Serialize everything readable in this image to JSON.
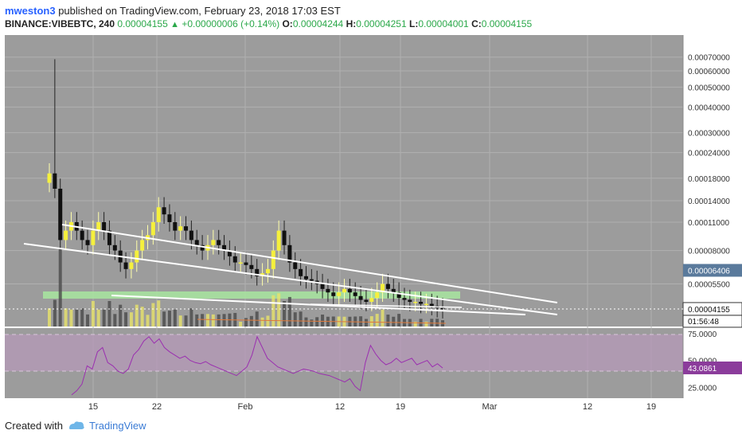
{
  "header": {
    "user": "mweston3",
    "published": "published on TradingView.com, February 23, 2018 17:03 EST",
    "symbol": "BINANCE:VIBEBTC, 240",
    "last": "0.00004155",
    "arrow": "▲",
    "change": "+0.00000006 (+0.14%)",
    "o_label": "O:",
    "o_value": "0.00004244",
    "h_label": "H:",
    "h_value": "0.00004251",
    "l_label": "L:",
    "l_value": "0.00004001",
    "c_label": "C:",
    "c_value": "0.00004155"
  },
  "footer": {
    "created": "Created with",
    "brand": "TradingView"
  },
  "colors": {
    "background": "#9c9c9c",
    "axis_bg": "#ffffff",
    "bull": "#f5f03c",
    "bear": "#111111",
    "trendline": "#ffffff",
    "zone": "#a8e6a0",
    "rsi": "#9b2fb0",
    "rsi_band": "#b59ab8",
    "price_tag": "#5a7a9c",
    "rsi_tag": "#8b3c9b"
  },
  "chart_data": [
    {
      "type": "candlestick",
      "symbol": "BINANCE:VIBEBTC",
      "interval": "240",
      "y_scale": "log",
      "y_ticks": [
        "0.00070000",
        "0.00060000",
        "0.00050000",
        "0.00040000",
        "0.00030000",
        "0.00024000",
        "0.00018000",
        "0.00014000",
        "0.00011000",
        "0.00008000",
        "0.00005500"
      ],
      "y_tick_values": [
        0.0007,
        0.0006,
        0.0005,
        0.0004,
        0.0003,
        0.00024,
        0.00018,
        0.00014,
        0.00011,
        8e-05,
        5.5e-05
      ],
      "x_ticks": [
        "15",
        "22",
        "Feb",
        "12",
        "19",
        "Mar",
        "12",
        "19"
      ],
      "price_tags": [
        {
          "label": "0.00006406",
          "value": 6.406e-05,
          "style": "filled"
        },
        {
          "label": "0.00004155",
          "value": 4.155e-05,
          "style": "outline"
        }
      ],
      "countdown": "01:56:48",
      "ylim": [
        3.6e-05,
        0.00085
      ],
      "close_series": [
        0.00019,
        0.00016,
        9e-05,
        0.0001,
        0.00011,
        0.0001,
        9e-05,
        8.5e-05,
        0.0001,
        0.00011,
        0.0001,
        8.5e-05,
        8e-05,
        7e-05,
        6.5e-05,
        7e-05,
        8e-05,
        9e-05,
        9.5e-05,
        0.00011,
        0.00013,
        0.00012,
        0.00011,
        0.0001,
        0.000105,
        0.0001,
        9e-05,
        8.5e-05,
        8e-05,
        8.5e-05,
        9e-05,
        8.5e-05,
        8e-05,
        7.5e-05,
        7e-05,
        7e-05,
        6.8e-05,
        6.5e-05,
        6e-05,
        6.2e-05,
        6.5e-05,
        8e-05,
        0.0001,
        8.5e-05,
        7e-05,
        6.5e-05,
        6e-05,
        5.8e-05,
        5.7e-05,
        5.5e-05,
        5.2e-05,
        5e-05,
        4.8e-05,
        5e-05,
        5.2e-05,
        5e-05,
        4.8e-05,
        4.6e-05,
        4.5e-05,
        4.7e-05,
        5e-05,
        5.5e-05,
        5.2e-05,
        5e-05,
        4.7e-05,
        4.6e-05,
        4.5e-05,
        4.5e-05,
        4.4e-05,
        4.4e-05,
        4.3e-05,
        4.2e-05,
        4.15e-05
      ]
    },
    {
      "type": "line",
      "name": "RSI",
      "value_label": "43.0861",
      "y_ticks": [
        "75.0000",
        "50.0000",
        "25.0000"
      ],
      "y_tick_values": [
        75,
        50,
        25
      ],
      "band": [
        30,
        70
      ],
      "ylim": [
        15,
        80
      ],
      "values": [
        18,
        22,
        28,
        45,
        42,
        58,
        62,
        48,
        45,
        40,
        38,
        42,
        55,
        60,
        68,
        72,
        66,
        70,
        62,
        58,
        55,
        52,
        54,
        50,
        48,
        47,
        49,
        46,
        44,
        42,
        40,
        38,
        36,
        40,
        44,
        55,
        72,
        62,
        52,
        48,
        44,
        42,
        40,
        38,
        40,
        42,
        41,
        40,
        38,
        37,
        36,
        34,
        32,
        30,
        33,
        26,
        22,
        48,
        64,
        56,
        50,
        46,
        48,
        52,
        48,
        50,
        52,
        46,
        48,
        50,
        44,
        47,
        43
      ]
    }
  ]
}
